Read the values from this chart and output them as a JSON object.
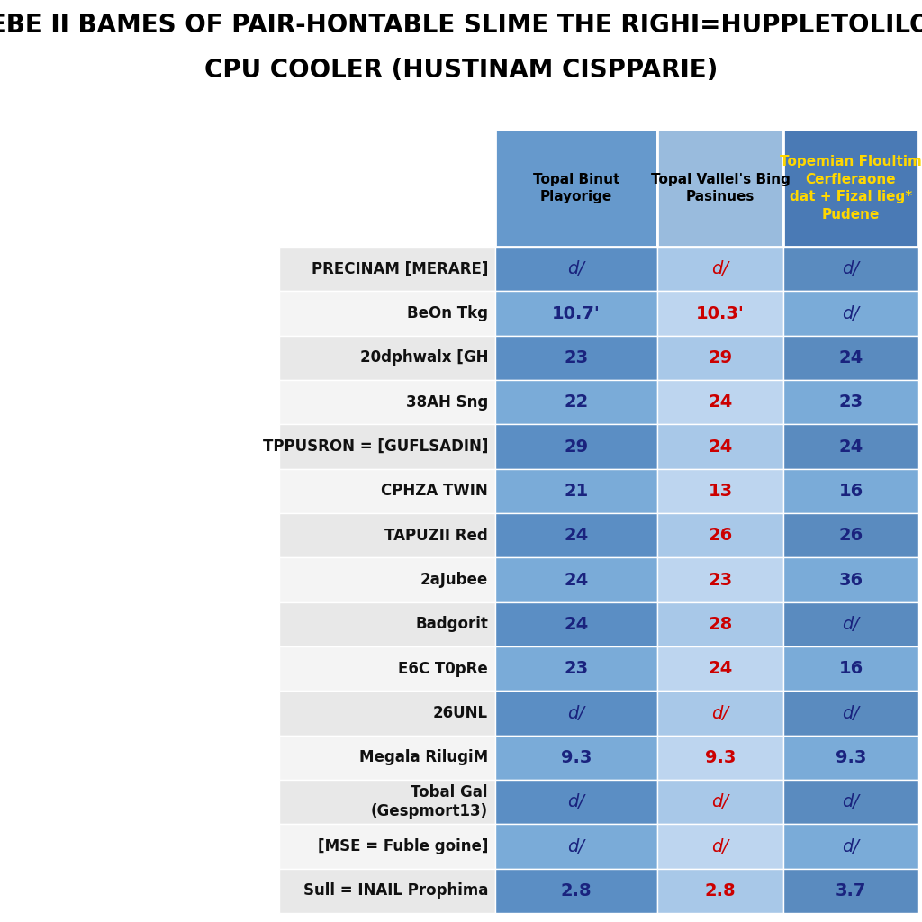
{
  "title_line1": "TEBE II BAMES OF PAIR-HONTABLE SLIME THE RIGHI=HUPPLETOLILOR",
  "title_line2": "CPU COOLER (HUSTINAM CISPPARIE)",
  "col_headers": [
    "Topal Binut\nPlayorige",
    "Topal Vallel's Bing\nPasinues",
    "Topemian Floultim\nCerfleraone\ndat + Fizal lieg*\nPudene"
  ],
  "rows": [
    {
      "label": "PRECINAM [MERARE]",
      "vals": [
        "d/",
        "d/",
        "d/"
      ],
      "vcols": [
        "#1a237e",
        "#cc0000",
        "#1a237e"
      ],
      "italic": [
        true,
        true,
        true
      ]
    },
    {
      "label": "BeOn Tkg",
      "vals": [
        "10.7'",
        "10.3'",
        "d/"
      ],
      "vcols": [
        "#1a237e",
        "#cc0000",
        "#1a237e"
      ],
      "italic": [
        false,
        false,
        true
      ]
    },
    {
      "label": "20dphwalx [GH",
      "vals": [
        "23",
        "29",
        "24"
      ],
      "vcols": [
        "#1a237e",
        "#cc0000",
        "#1a237e"
      ],
      "italic": [
        false,
        false,
        false
      ]
    },
    {
      "label": "38AH Sng",
      "vals": [
        "22",
        "24",
        "23"
      ],
      "vcols": [
        "#1a237e",
        "#cc0000",
        "#1a237e"
      ],
      "italic": [
        false,
        false,
        false
      ]
    },
    {
      "label": "TPPUSRON = [GUFLSADIN]",
      "vals": [
        "29",
        "24",
        "24"
      ],
      "vcols": [
        "#1a237e",
        "#cc0000",
        "#1a237e"
      ],
      "italic": [
        false,
        false,
        false
      ]
    },
    {
      "label": "CPHZA TWIN",
      "vals": [
        "21",
        "13",
        "16"
      ],
      "vcols": [
        "#1a237e",
        "#cc0000",
        "#1a237e"
      ],
      "italic": [
        false,
        false,
        false
      ]
    },
    {
      "label": "TAPUZII Red",
      "vals": [
        "24",
        "26",
        "26"
      ],
      "vcols": [
        "#1a237e",
        "#cc0000",
        "#1a237e"
      ],
      "italic": [
        false,
        false,
        false
      ]
    },
    {
      "label": "2aJubee",
      "vals": [
        "24",
        "23",
        "36"
      ],
      "vcols": [
        "#1a237e",
        "#cc0000",
        "#1a237e"
      ],
      "italic": [
        false,
        false,
        false
      ]
    },
    {
      "label": "Badgorit",
      "vals": [
        "24",
        "28",
        "d/"
      ],
      "vcols": [
        "#1a237e",
        "#cc0000",
        "#1a237e"
      ],
      "italic": [
        false,
        false,
        true
      ]
    },
    {
      "label": "E6C T0pRe",
      "vals": [
        "23",
        "24",
        "16"
      ],
      "vcols": [
        "#1a237e",
        "#cc0000",
        "#1a237e"
      ],
      "italic": [
        false,
        false,
        false
      ]
    },
    {
      "label": "26UNL",
      "vals": [
        "d/",
        "d/",
        "d/"
      ],
      "vcols": [
        "#1a237e",
        "#cc0000",
        "#1a237e"
      ],
      "italic": [
        true,
        true,
        true
      ]
    },
    {
      "label": "Megala RilugiM",
      "vals": [
        "9.3",
        "9.3",
        "9.3"
      ],
      "vcols": [
        "#1a237e",
        "#cc0000",
        "#1a237e"
      ],
      "italic": [
        false,
        false,
        false
      ]
    },
    {
      "label": "Tobal Gal\n(Gespmort13)",
      "vals": [
        "d/",
        "d/",
        "d/"
      ],
      "vcols": [
        "#1a237e",
        "#cc0000",
        "#1a237e"
      ],
      "italic": [
        true,
        true,
        true
      ]
    },
    {
      "label": "[MSE = Fuble goine]",
      "vals": [
        "d/",
        "d/",
        "d/"
      ],
      "vcols": [
        "#1a237e",
        "#cc0000",
        "#1a237e"
      ],
      "italic": [
        true,
        true,
        true
      ]
    },
    {
      "label": "Sull = INAIL Prophima",
      "vals": [
        "2.8",
        "2.8",
        "3.7"
      ],
      "vcols": [
        "#1a237e",
        "#cc0000",
        "#1a237e"
      ],
      "italic": [
        false,
        false,
        false
      ]
    }
  ],
  "col_data_bgs": [
    [
      "#5b8ec4",
      "#7aabd8"
    ],
    [
      "#a8c8e8",
      "#bdd5ef"
    ],
    [
      "#5a8bbf",
      "#7aabd8"
    ]
  ],
  "header_bgs": [
    "#6699cc",
    "#99bbdd",
    "#4a7ab5"
  ],
  "header_tcolors": [
    "#000000",
    "#000000",
    "#ffd700"
  ],
  "label_bgs": [
    "#e8e8e8",
    "#f4f4f4"
  ],
  "title_color": "#000000",
  "fig_bg": "#ffffff"
}
